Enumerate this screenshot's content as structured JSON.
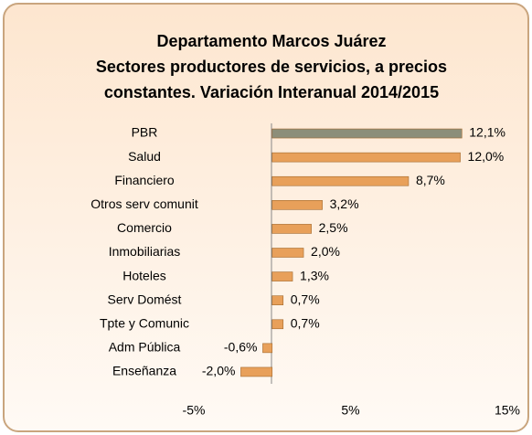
{
  "chart_data": {
    "type": "bar",
    "orientation": "horizontal",
    "title": [
      "Departamento Marcos Juárez",
      "Sectores productores de servicios, a precios",
      "constantes. Variación Interanual 2014/2015"
    ],
    "categories": [
      "PBR",
      "Salud",
      "Financiero",
      "Otros serv comunit",
      "Comercio",
      "Inmobiliarias",
      "Hoteles",
      "Serv Domést",
      "Tpte y Comunic",
      "Adm Pública",
      "Enseñanza"
    ],
    "values": [
      12.1,
      12.0,
      8.7,
      3.2,
      2.5,
      2.0,
      1.3,
      0.7,
      0.7,
      -0.6,
      -2.0
    ],
    "value_labels": [
      "12,1%",
      "12,0%",
      "8,7%",
      "3,2%",
      "2,5%",
      "2,0%",
      "1,3%",
      "0,7%",
      "0,7%",
      "-0,6%",
      "-2,0%"
    ],
    "colors": [
      "#8c8e7a",
      "#e8a05a",
      "#e8a05a",
      "#e8a05a",
      "#e8a05a",
      "#e8a05a",
      "#e8a05a",
      "#e8a05a",
      "#e8a05a",
      "#e8a05a",
      "#e8a05a"
    ],
    "xlim": [
      -5,
      15
    ],
    "xticks": [
      {
        "value": -5,
        "label": "-5%"
      },
      {
        "value": 5,
        "label": "5%"
      },
      {
        "value": 15,
        "label": "15%"
      }
    ]
  }
}
